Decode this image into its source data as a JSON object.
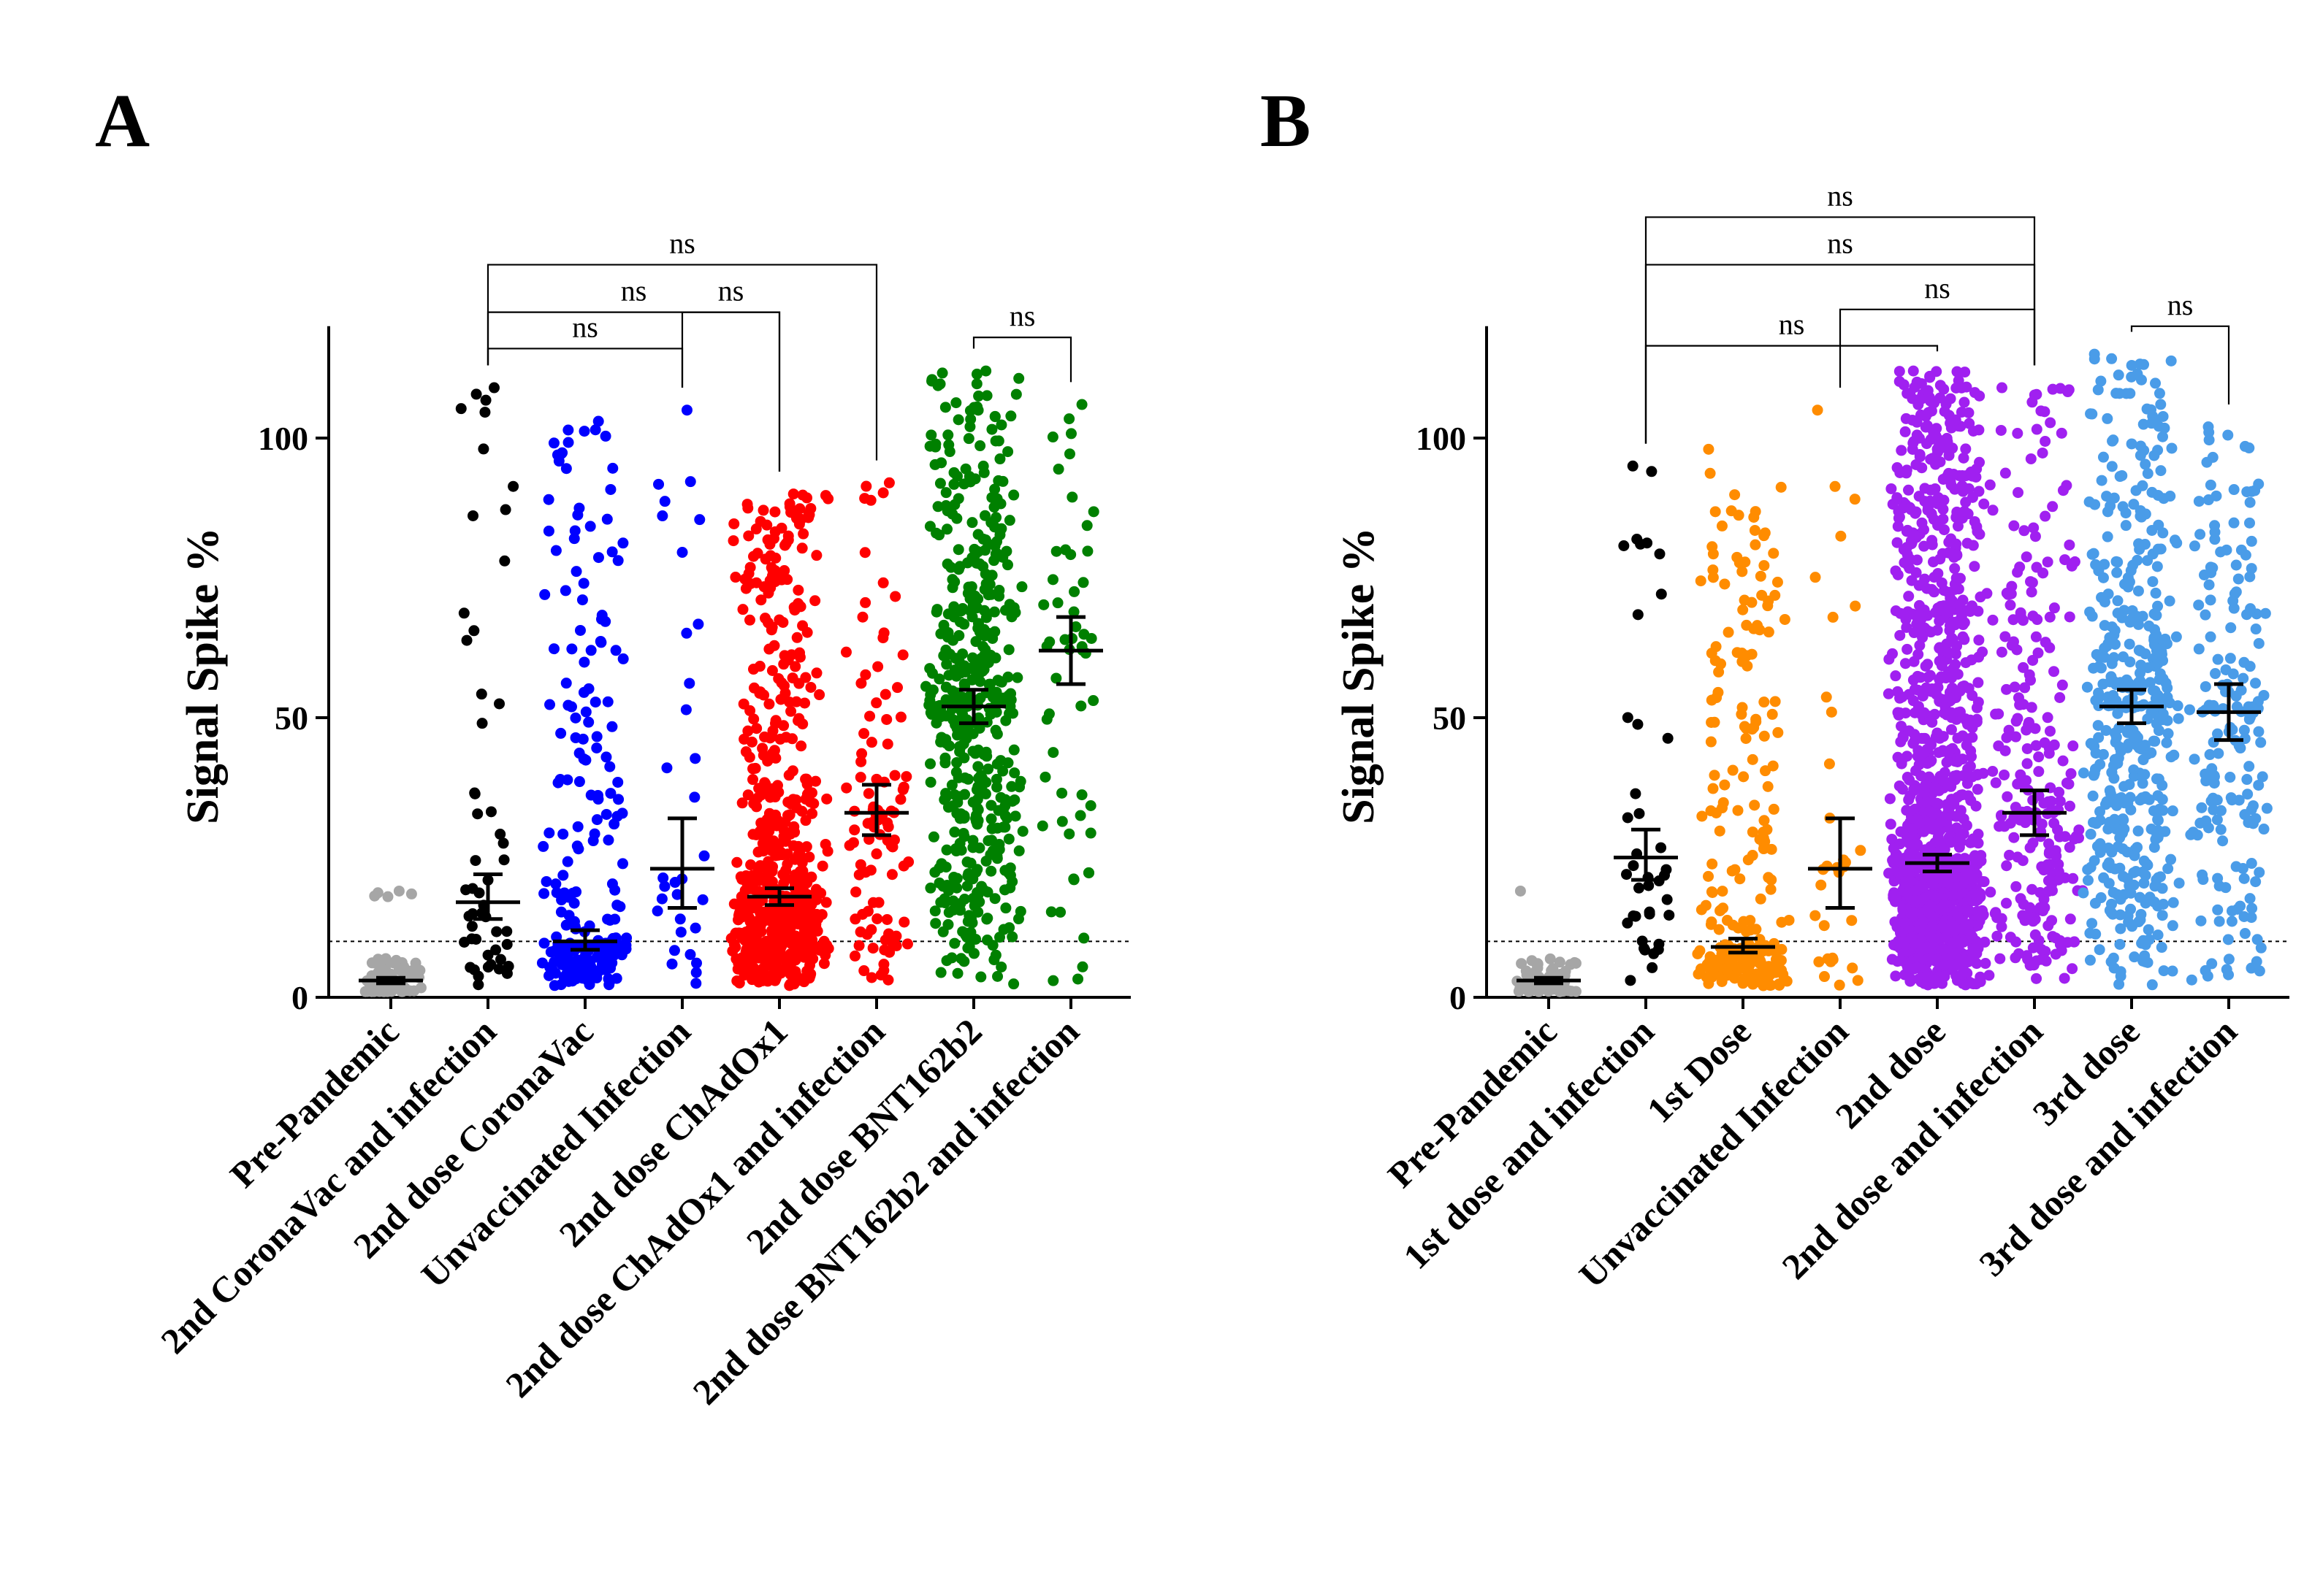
{
  "chart_data": [
    {
      "panel": "A",
      "type": "scatter",
      "ylabel": "Signal Spike %",
      "ylim": [
        0,
        120
      ],
      "yticks": [
        0,
        50,
        100
      ],
      "cutoff": 10,
      "categories": [
        "Pre-Pandemic",
        "2nd CoronaVac and infection",
        "2nd dose CoronaVac",
        "Unvaccinated Infection",
        "2nd dose ChAdOx1",
        "2nd dose ChAdOx1 and infection",
        "2nd dose BNT162b2",
        "2nd dose BNT162b2 and infection"
      ],
      "colors": [
        "#a6a6a6",
        "#000000",
        "#0000ff",
        "#0000ff",
        "#ff0000",
        "#ff0000",
        "#008000",
        "#008000"
      ],
      "n": [
        80,
        52,
        230,
        32,
        600,
        100,
        500,
        55
      ],
      "median": [
        3,
        17,
        10,
        23,
        18,
        33,
        52,
        62
      ],
      "ci": [
        [
          2.5,
          3.5
        ],
        [
          14,
          22
        ],
        [
          8.5,
          12
        ],
        [
          16,
          32
        ],
        [
          16.5,
          19.5
        ],
        [
          29,
          38
        ],
        [
          49,
          55
        ],
        [
          56,
          68
        ]
      ],
      "max": [
        19,
        109,
        103,
        105,
        90,
        92,
        112,
        106
      ],
      "significance": [
        {
          "from": 1,
          "to": 3,
          "label": "ns",
          "y": 116
        },
        {
          "from": 1,
          "to": 4,
          "label": "ns",
          "y": 122.5
        },
        {
          "from": 3,
          "to": 4,
          "label": "ns",
          "y": 122.5
        },
        {
          "from": 1,
          "to": 5,
          "label": "ns",
          "y": 131
        },
        {
          "from": 6,
          "to": 7,
          "label": "ns",
          "y": 118
        }
      ]
    },
    {
      "panel": "B",
      "type": "scatter",
      "ylabel": "Signal Spike %",
      "ylim": [
        0,
        120
      ],
      "yticks": [
        0,
        50,
        100
      ],
      "cutoff": 10,
      "categories": [
        "Pre-Pandemic",
        "1st dose and infection",
        "1st Dose",
        "Unvaccinated Infection",
        "2nd dose",
        "2nd dose and infection",
        "3rd dose",
        "3rd dose and infection"
      ],
      "colors": [
        "#a6a6a6",
        "#000000",
        "#ff8c00",
        "#ff8c00",
        "#a020f0",
        "#a020f0",
        "#4a9ce8",
        "#4a9ce8"
      ],
      "n": [
        80,
        40,
        260,
        32,
        1300,
        250,
        450,
        180
      ],
      "median": [
        3,
        25,
        9,
        23,
        24,
        33,
        52,
        51
      ],
      "ci": [
        [
          2.5,
          3.5
        ],
        [
          21,
          30
        ],
        [
          8,
          10.5
        ],
        [
          16,
          32
        ],
        [
          22.5,
          25.5
        ],
        [
          29,
          37
        ],
        [
          49,
          55
        ],
        [
          46,
          56
        ]
      ],
      "max": [
        19,
        95,
        98,
        105,
        112,
        109,
        115,
        102
      ],
      "significance": [
        {
          "from": 1,
          "to": 4,
          "label": "ns",
          "y": 116.5
        },
        {
          "from": 3,
          "to": 5,
          "label": "ns",
          "y": 123
        },
        {
          "from": 1,
          "to": 5,
          "label": "ns",
          "y": 131
        },
        {
          "from": 1,
          "to": 5,
          "label": "ns",
          "y": 139.5
        },
        {
          "from": 6,
          "to": 7,
          "label": "ns",
          "y": 120
        }
      ]
    }
  ],
  "panel_letters": [
    "A",
    "B"
  ]
}
